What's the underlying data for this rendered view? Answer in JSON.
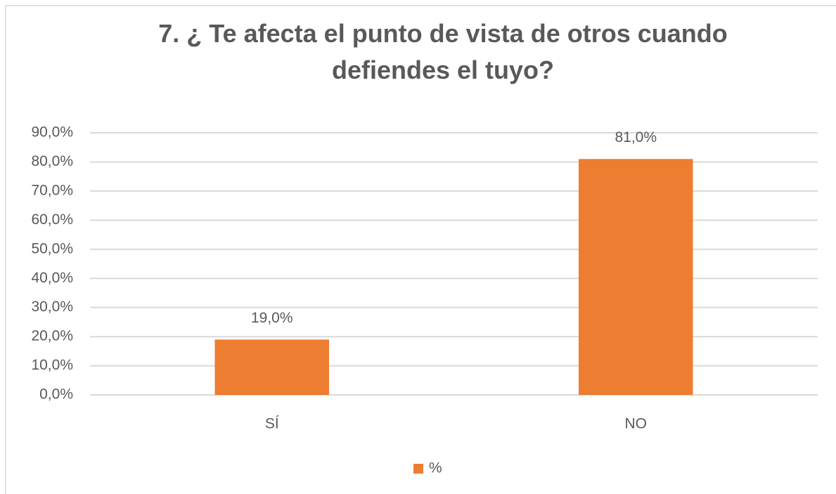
{
  "chart_data": {
    "type": "bar",
    "title": "7. ¿ Te afecta el punto de vista de otros cuando defiendes el tuyo?",
    "categories": [
      "SÍ",
      "NO"
    ],
    "series": [
      {
        "name": "%",
        "color": "#ed7d31",
        "values": [
          19,
          81
        ],
        "value_labels": [
          "19,0%",
          "81,0%"
        ]
      }
    ],
    "ylim": [
      0,
      90
    ],
    "yticks": [
      {
        "value": 0,
        "label": "0,0%"
      },
      {
        "value": 10,
        "label": "10,0%"
      },
      {
        "value": 20,
        "label": "20,0%"
      },
      {
        "value": 30,
        "label": "30,0%"
      },
      {
        "value": 40,
        "label": "40,0%"
      },
      {
        "value": 50,
        "label": "50,0%"
      },
      {
        "value": 60,
        "label": "60,0%"
      },
      {
        "value": 70,
        "label": "70,0%"
      },
      {
        "value": 80,
        "label": "80,0%"
      },
      {
        "value": 90,
        "label": "90,0%"
      }
    ],
    "grid": true,
    "legend": "bottom"
  }
}
